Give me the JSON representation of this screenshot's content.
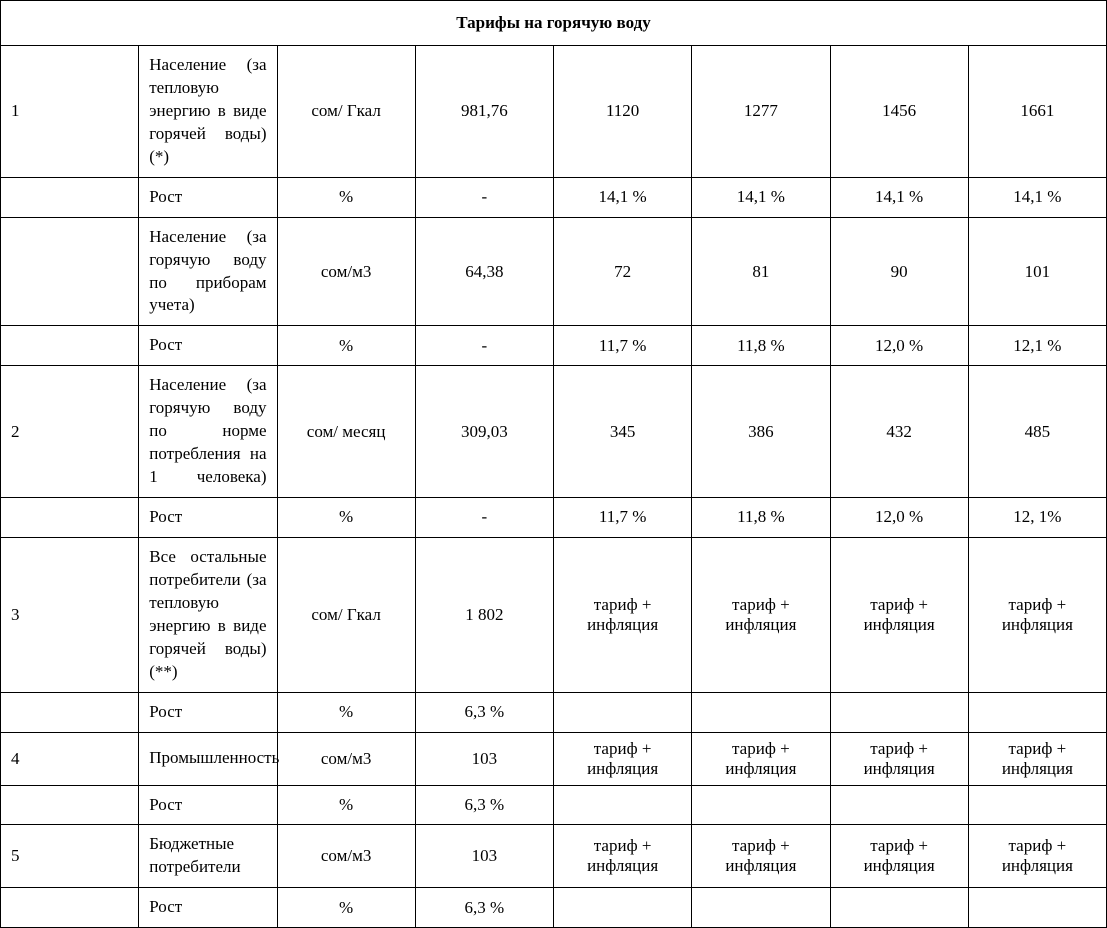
{
  "table": {
    "title": "Тарифы на горячую воду",
    "rows": [
      {
        "num": "1",
        "desc": "Население (за тепловую энергию в виде горячей воды) (*)",
        "desc_justify": true,
        "unit": "сом/ Гкал",
        "v1": "981,76",
        "v2": "1120",
        "v3": "1277",
        "v4": "1456",
        "v5": "1661"
      },
      {
        "num": "",
        "desc": "Рост",
        "desc_justify": false,
        "unit": "%",
        "v1": "-",
        "v2": "14,1 %",
        "v3": "14,1 %",
        "v4": "14,1 %",
        "v5": "14,1 %"
      },
      {
        "num": "",
        "desc": "Население (за горячую воду по приборам учета)",
        "desc_justify": true,
        "unit": "сом/м3",
        "v1": "64,38",
        "v2": "72",
        "v3": "81",
        "v4": "90",
        "v5": "101"
      },
      {
        "num": "",
        "desc": "Рост",
        "desc_justify": false,
        "unit": "%",
        "v1": "-",
        "v2": "11,7 %",
        "v3": "11,8 %",
        "v4": "12,0 %",
        "v5": "12,1 %"
      },
      {
        "num": "2",
        "desc": "Население (за горячую воду по норме потребления на 1 человека)",
        "desc_justify": true,
        "unit": "сом/ месяц",
        "v1": "309,03",
        "v2": "345",
        "v3": "386",
        "v4": "432",
        "v5": "485"
      },
      {
        "num": "",
        "desc": "Рост",
        "desc_justify": false,
        "unit": "%",
        "v1": "-",
        "v2": "11,7 %",
        "v3": "11,8 %",
        "v4": "12,0 %",
        "v5": "12, 1%"
      },
      {
        "num": "3",
        "desc": "Все остальные потребители (за тепловую энергию в виде горячей воды) (**)",
        "desc_justify": true,
        "unit": "сом/ Гкал",
        "v1": "1 802",
        "v2": "тариф + инфляция",
        "v3": "тариф + инфляция",
        "v4": "тариф + инфляция",
        "v5": "тариф + инфляция"
      },
      {
        "num": "",
        "desc": "Рост",
        "desc_justify": false,
        "unit": "%",
        "v1": "6,3 %",
        "v2": "",
        "v3": "",
        "v4": "",
        "v5": ""
      },
      {
        "num": "4",
        "desc": "Промышленность",
        "desc_justify": false,
        "unit": "сом/м3",
        "v1": "103",
        "v2": "тариф + инфляция",
        "v3": "тариф + инфляция",
        "v4": "тариф + инфляция",
        "v5": "тариф + инфляция"
      },
      {
        "num": "",
        "desc": "Рост",
        "desc_justify": false,
        "unit": "%",
        "v1": "6,3 %",
        "v2": "",
        "v3": "",
        "v4": "",
        "v5": ""
      },
      {
        "num": "5",
        "desc": "Бюджетные потребители",
        "desc_justify": false,
        "unit": "сом/м3",
        "v1": "103",
        "v2": "тариф + инфляция",
        "v3": "тариф + инфляция",
        "v4": "тариф + инфляция",
        "v5": "тариф + инфляция"
      },
      {
        "num": "",
        "desc": "Рост",
        "desc_justify": false,
        "unit": "%",
        "v1": "6,3 %",
        "v2": "",
        "v3": "",
        "v4": "",
        "v5": ""
      }
    ]
  },
  "styling": {
    "font_family": "Times New Roman",
    "font_size_pt": 13,
    "border_color": "#000000",
    "background_color": "#ffffff",
    "text_color": "#000000",
    "column_widths": {
      "num": 42,
      "desc": 230,
      "unit": 112,
      "value_cols": 5
    }
  }
}
